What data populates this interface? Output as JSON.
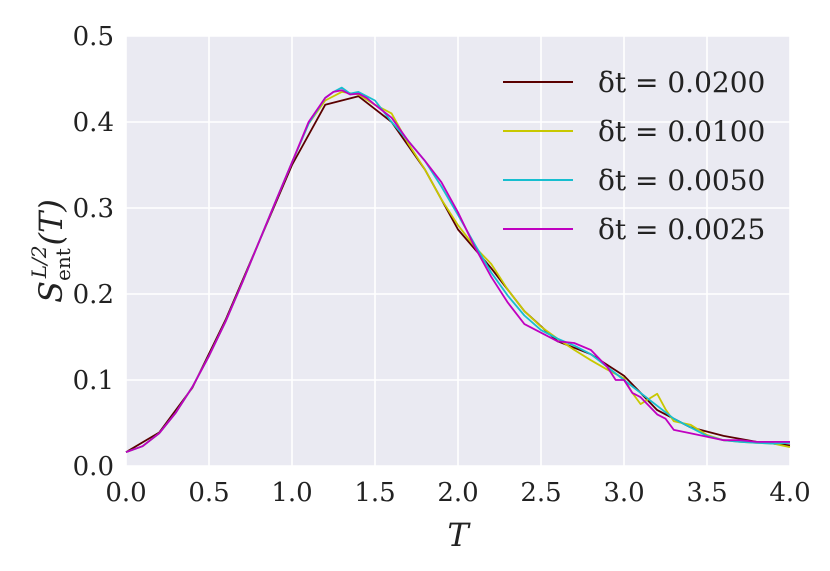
{
  "chart_data": {
    "type": "line",
    "xlabel": "T",
    "ylabel": {
      "base": "S",
      "sup": "L/2",
      "sub": "ent",
      "arg": "(T)"
    },
    "xlim": [
      0.0,
      4.0
    ],
    "ylim": [
      0.0,
      0.5
    ],
    "xticks": [
      "0.0",
      "0.5",
      "1.0",
      "1.5",
      "2.0",
      "2.5",
      "3.0",
      "3.5",
      "4.0"
    ],
    "yticks": [
      "0.0",
      "0.1",
      "0.2",
      "0.3",
      "0.4",
      "0.5"
    ],
    "grid": true,
    "legend_position": "top-right",
    "series": [
      {
        "name": "δt = 0.0200",
        "color": "#5a0000",
        "x": [
          0.0,
          0.2,
          0.4,
          0.6,
          0.8,
          1.0,
          1.2,
          1.4,
          1.6,
          1.8,
          2.0,
          2.2,
          2.4,
          2.6,
          2.8,
          3.0,
          3.2,
          3.4,
          3.6,
          3.8,
          4.0
        ],
        "y": [
          0.016,
          0.039,
          0.091,
          0.17,
          0.26,
          0.35,
          0.42,
          0.43,
          0.4,
          0.345,
          0.275,
          0.23,
          0.18,
          0.145,
          0.13,
          0.105,
          0.065,
          0.045,
          0.035,
          0.028,
          0.024
        ]
      },
      {
        "name": "δt = 0.0100",
        "color": "#c8c800",
        "x": [
          0.0,
          0.1,
          0.2,
          0.3,
          0.4,
          0.5,
          0.6,
          0.7,
          0.8,
          0.9,
          1.0,
          1.1,
          1.2,
          1.3,
          1.4,
          1.5,
          1.6,
          1.7,
          1.8,
          1.9,
          2.0,
          2.1,
          2.2,
          2.3,
          2.4,
          2.5,
          2.6,
          2.7,
          2.8,
          2.9,
          3.0,
          3.05,
          3.1,
          3.15,
          3.2,
          3.25,
          3.3,
          3.4,
          3.5,
          3.6,
          3.7,
          3.8,
          3.9,
          4.0
        ],
        "y": [
          0.016,
          0.023,
          0.038,
          0.062,
          0.092,
          0.128,
          0.168,
          0.213,
          0.26,
          0.307,
          0.353,
          0.398,
          0.425,
          0.435,
          0.432,
          0.42,
          0.41,
          0.375,
          0.345,
          0.31,
          0.28,
          0.255,
          0.235,
          0.205,
          0.18,
          0.162,
          0.148,
          0.135,
          0.123,
          0.112,
          0.102,
          0.085,
          0.072,
          0.078,
          0.084,
          0.066,
          0.052,
          0.048,
          0.036,
          0.03,
          0.028,
          0.027,
          0.026,
          0.022
        ]
      },
      {
        "name": "δt = 0.0050",
        "color": "#17becf",
        "x": [
          0.0,
          0.1,
          0.2,
          0.3,
          0.4,
          0.5,
          0.6,
          0.7,
          0.8,
          0.9,
          1.0,
          1.1,
          1.2,
          1.25,
          1.3,
          1.35,
          1.4,
          1.5,
          1.6,
          1.7,
          1.8,
          1.9,
          2.0,
          2.1,
          2.2,
          2.3,
          2.4,
          2.5,
          2.6,
          2.7,
          2.8,
          2.9,
          3.0,
          3.1,
          3.2,
          3.3,
          3.4,
          3.5,
          3.6,
          3.7,
          3.8,
          3.9,
          4.0
        ],
        "y": [
          0.016,
          0.023,
          0.038,
          0.062,
          0.092,
          0.128,
          0.168,
          0.213,
          0.26,
          0.307,
          0.353,
          0.398,
          0.428,
          0.435,
          0.44,
          0.433,
          0.435,
          0.425,
          0.4,
          0.378,
          0.355,
          0.325,
          0.292,
          0.258,
          0.225,
          0.198,
          0.175,
          0.158,
          0.148,
          0.14,
          0.13,
          0.115,
          0.1,
          0.085,
          0.07,
          0.055,
          0.045,
          0.035,
          0.03,
          0.028,
          0.027,
          0.026,
          0.027
        ]
      },
      {
        "name": "δt = 0.0025",
        "color": "#c000c0",
        "x": [
          0.0,
          0.1,
          0.2,
          0.3,
          0.4,
          0.5,
          0.6,
          0.7,
          0.8,
          0.9,
          1.0,
          1.1,
          1.2,
          1.25,
          1.3,
          1.35,
          1.4,
          1.45,
          1.5,
          1.6,
          1.7,
          1.8,
          1.9,
          2.0,
          2.1,
          2.2,
          2.3,
          2.4,
          2.5,
          2.6,
          2.7,
          2.8,
          2.9,
          2.95,
          3.0,
          3.05,
          3.1,
          3.15,
          3.2,
          3.25,
          3.3,
          3.4,
          3.5,
          3.6,
          3.7,
          3.8,
          3.9,
          4.0
        ],
        "y": [
          0.016,
          0.023,
          0.038,
          0.062,
          0.092,
          0.128,
          0.168,
          0.213,
          0.26,
          0.307,
          0.353,
          0.4,
          0.428,
          0.435,
          0.437,
          0.432,
          0.433,
          0.428,
          0.42,
          0.405,
          0.378,
          0.355,
          0.33,
          0.295,
          0.255,
          0.22,
          0.19,
          0.165,
          0.155,
          0.145,
          0.143,
          0.135,
          0.115,
          0.1,
          0.1,
          0.085,
          0.08,
          0.07,
          0.06,
          0.055,
          0.042,
          0.038,
          0.034,
          0.03,
          0.03,
          0.028,
          0.028,
          0.028
        ]
      }
    ]
  }
}
